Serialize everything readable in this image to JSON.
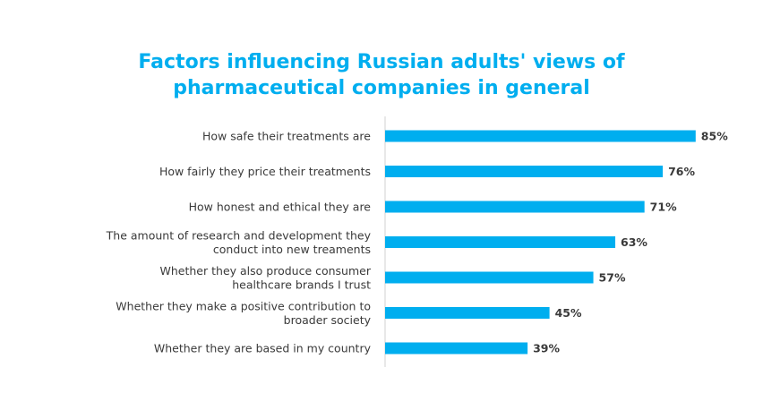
{
  "chart_data": {
    "type": "bar",
    "orientation": "horizontal",
    "title": "Factors influencing Russian adults' views of pharmaceutical companies in general",
    "title_lines": [
      "Factors influencing Russian adults' views of",
      "pharmaceutical companies in general"
    ],
    "categories": [
      [
        "How safe their treatments are"
      ],
      [
        "How fairly they price their treatments"
      ],
      [
        "How honest and ethical they are"
      ],
      [
        "The amount of research and development they",
        "conduct into new treaments"
      ],
      [
        "Whether they also produce consumer",
        "healthcare brands I trust"
      ],
      [
        "Whether they make a positive contribution to",
        "broader society"
      ],
      [
        "Whether they are based in my country"
      ]
    ],
    "values": [
      85,
      76,
      71,
      63,
      57,
      45,
      39
    ],
    "value_labels": [
      "85%",
      "76%",
      "71%",
      "63%",
      "57%",
      "45%",
      "39%"
    ],
    "unit": "%",
    "xlim": [
      0,
      100
    ],
    "grid": false,
    "legend": "none",
    "bar_color": "#00aeef",
    "title_color": "#00aeef",
    "text_color": "#3a3a3a",
    "axis_color": "#d0d0d0"
  }
}
